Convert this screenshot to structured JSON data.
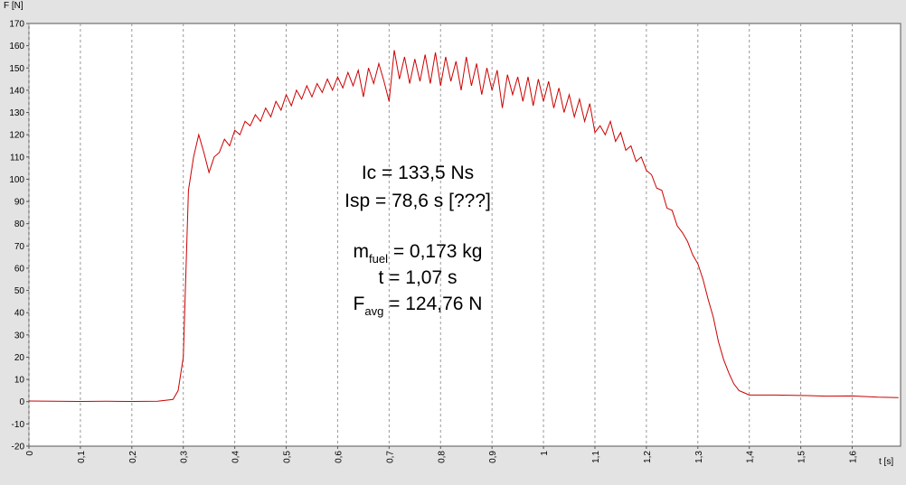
{
  "chart_data": {
    "type": "line",
    "y_label": "F [N]",
    "x_label": "t [s]",
    "annotations": [
      [
        "Ic = 133,5 Ns"
      ],
      [
        "Isp = 78,6 s [???]"
      ],
      [
        "m",
        "fuel",
        " = 0,173 kg"
      ],
      [
        "t = 1,07 s"
      ],
      [
        "F",
        "avg",
        " = 124,76 N"
      ]
    ],
    "xlim": [
      0,
      1.694
    ],
    "ylim": [
      -20,
      170
    ],
    "xticks": [
      0,
      {
        "value": 0.1,
        "label": "0,1"
      },
      {
        "value": 0.2,
        "label": "0,2"
      },
      {
        "value": 0.3,
        "label": "0,3"
      },
      {
        "value": 0.4,
        "label": "0,4"
      },
      {
        "value": 0.5,
        "label": "0,5"
      },
      {
        "value": 0.6,
        "label": "0,6"
      },
      {
        "value": 0.7,
        "label": "0,7"
      },
      {
        "value": 0.8,
        "label": "0,8"
      },
      {
        "value": 0.9,
        "label": "0,9"
      },
      1,
      {
        "value": 1.1,
        "label": "1,1"
      },
      {
        "value": 1.2,
        "label": "1,2"
      },
      {
        "value": 1.3,
        "label": "1,3"
      },
      {
        "value": 1.4,
        "label": "1,4"
      },
      {
        "value": 1.5,
        "label": "1,5"
      },
      {
        "value": 1.6,
        "label": "1,6"
      }
    ],
    "yticks": [
      -20,
      -10,
      0,
      10,
      20,
      30,
      40,
      50,
      60,
      70,
      80,
      90,
      100,
      110,
      120,
      130,
      140,
      150,
      160,
      170
    ],
    "grid": "x",
    "x": [
      0,
      0.05,
      0.1,
      0.15,
      0.2,
      0.25,
      0.28,
      0.29,
      0.3,
      0.31,
      0.32,
      0.33,
      0.34,
      0.35,
      0.36,
      0.37,
      0.38,
      0.39,
      0.4,
      0.41,
      0.42,
      0.43,
      0.44,
      0.45,
      0.46,
      0.47,
      0.48,
      0.49,
      0.5,
      0.51,
      0.52,
      0.53,
      0.54,
      0.55,
      0.56,
      0.57,
      0.58,
      0.59,
      0.6,
      0.61,
      0.62,
      0.63,
      0.64,
      0.65,
      0.66,
      0.67,
      0.68,
      0.69,
      0.7,
      0.71,
      0.72,
      0.73,
      0.74,
      0.75,
      0.76,
      0.77,
      0.78,
      0.79,
      0.8,
      0.81,
      0.82,
      0.83,
      0.84,
      0.85,
      0.86,
      0.87,
      0.88,
      0.89,
      0.9,
      0.91,
      0.92,
      0.93,
      0.94,
      0.95,
      0.96,
      0.97,
      0.98,
      0.99,
      1,
      1.01,
      1.02,
      1.03,
      1.04,
      1.05,
      1.06,
      1.07,
      1.08,
      1.09,
      1.1,
      1.11,
      1.12,
      1.13,
      1.14,
      1.15,
      1.16,
      1.17,
      1.18,
      1.19,
      1.2,
      1.21,
      1.22,
      1.23,
      1.24,
      1.25,
      1.26,
      1.27,
      1.28,
      1.29,
      1.3,
      1.31,
      1.32,
      1.33,
      1.34,
      1.35,
      1.36,
      1.37,
      1.38,
      1.39,
      1.4,
      1.45,
      1.5,
      1.55,
      1.6,
      1.65,
      1.69
    ],
    "series": [
      {
        "color": "#cc0000",
        "values": [
          0.3,
          0.2,
          0.1,
          0.2,
          0.1,
          0.2,
          1,
          5,
          20,
          95,
          110,
          120,
          112,
          103,
          110,
          112,
          118,
          115,
          122,
          120,
          126,
          124,
          129,
          126,
          132,
          128,
          135,
          131,
          138,
          133,
          140,
          136,
          142,
          137,
          143,
          139,
          145,
          140,
          146,
          141,
          148,
          142,
          149,
          137,
          150,
          143,
          152,
          144,
          135,
          158,
          145,
          155,
          143,
          154,
          144,
          156,
          143,
          157,
          142,
          155,
          144,
          153,
          140,
          155,
          142,
          152,
          138,
          150,
          140,
          149,
          132,
          147,
          138,
          146,
          135,
          146,
          133,
          145,
          135,
          144,
          132,
          141,
          130,
          138,
          128,
          136,
          126,
          134,
          121,
          124,
          120,
          126,
          117,
          121,
          113,
          115,
          108,
          110,
          104,
          102,
          96,
          95,
          87,
          86,
          79,
          76,
          72,
          66,
          62,
          55,
          46,
          38,
          27,
          19,
          13,
          8,
          5,
          4,
          3,
          3,
          2.8,
          2.5,
          2.6,
          2,
          1.8
        ]
      }
    ]
  }
}
